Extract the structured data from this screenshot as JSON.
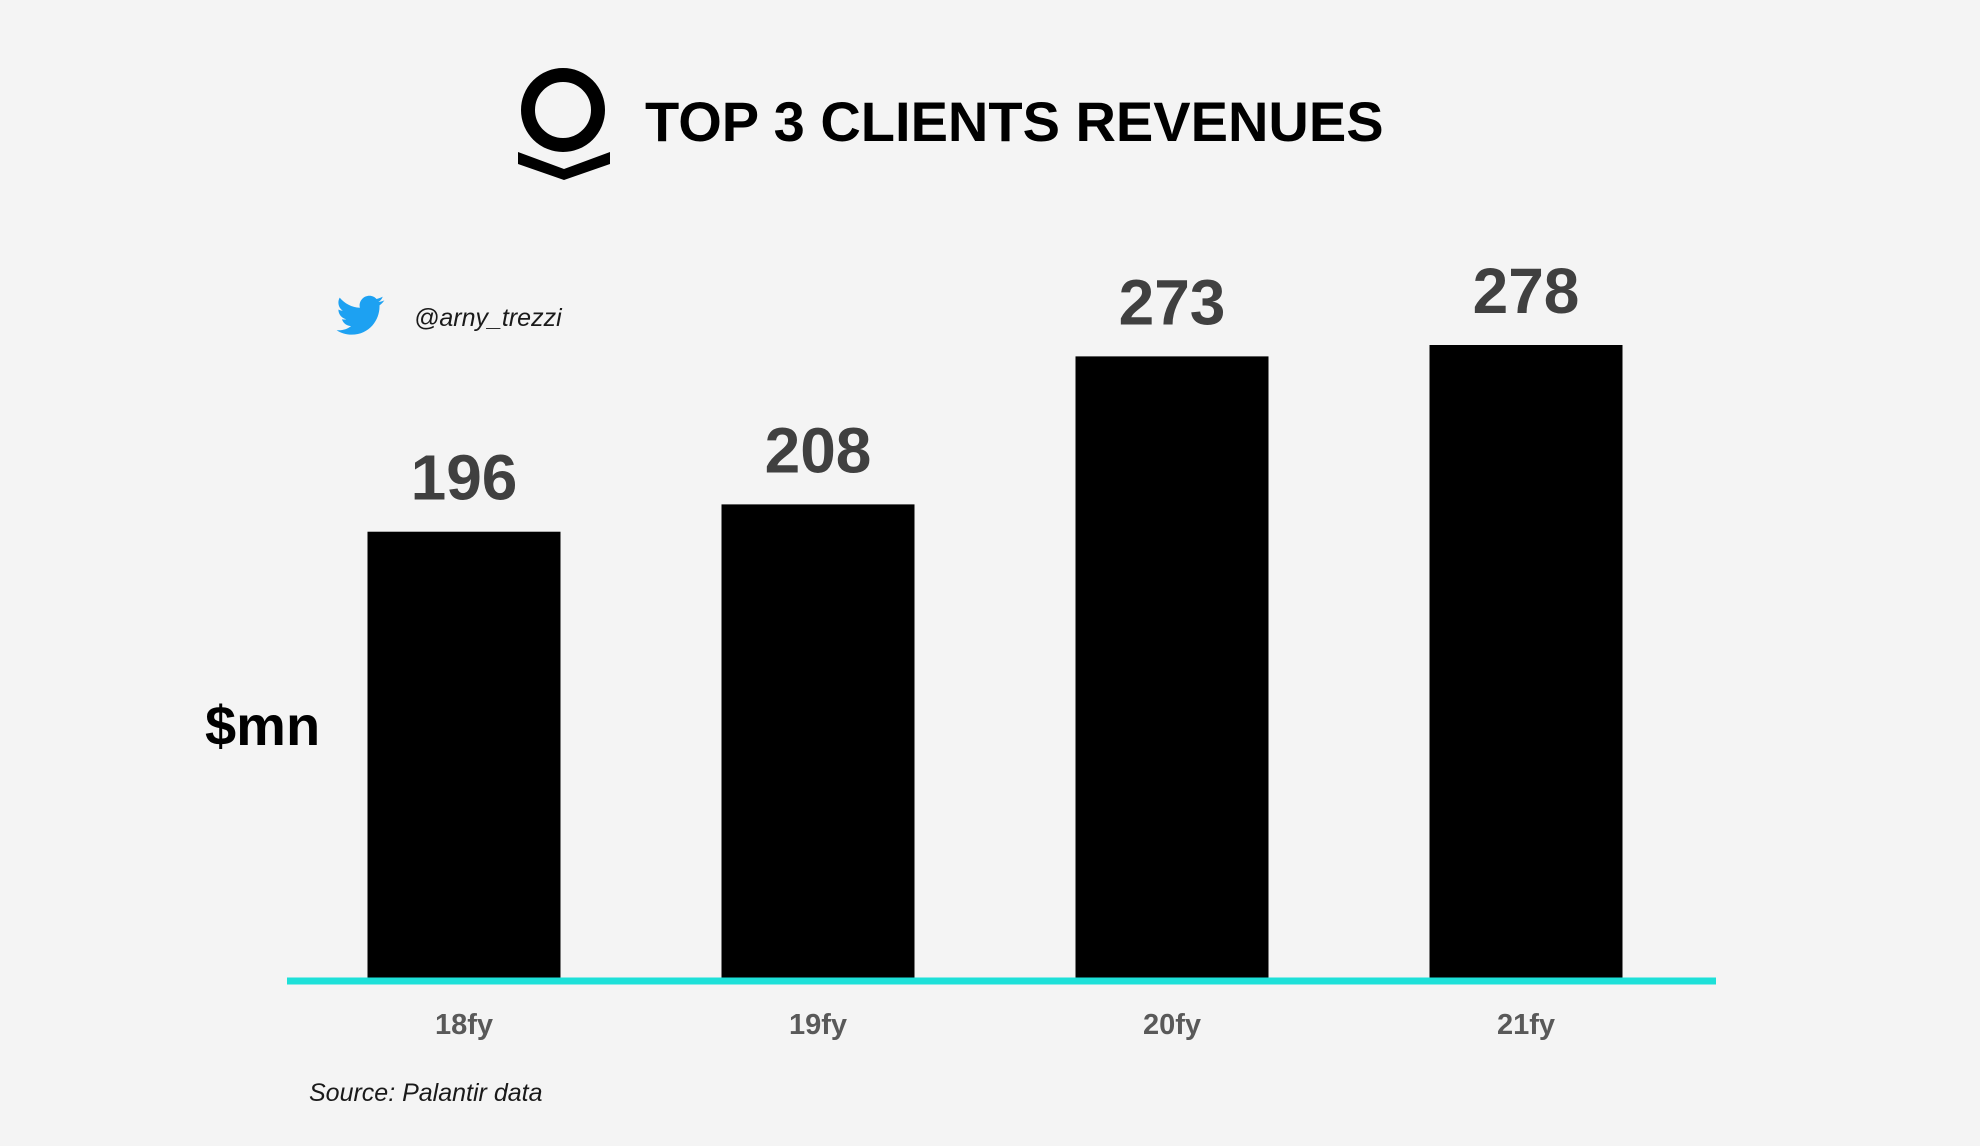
{
  "chart_data": {
    "type": "bar",
    "title": "TOP 3 CLIENTS REVENUES",
    "ylabel": "$mn",
    "categories": [
      "18fy",
      "19fy",
      "20fy",
      "21fy"
    ],
    "values": [
      196,
      208,
      273,
      278
    ],
    "ylim": [
      0,
      278
    ],
    "grid": false,
    "legend": "none"
  },
  "branding": {
    "logo_icon": "palantir-logo-icon",
    "twitter_icon": "twitter-bird-icon",
    "twitter_handle": "@arny_trezzi"
  },
  "source_note": "Source: Palantir data",
  "colors": {
    "background": "#f4f4f4",
    "bar": "#000000",
    "baseline": "#1de0d8",
    "value_label": "#404040",
    "category_label": "#595959",
    "twitter": "#1da1f2"
  }
}
